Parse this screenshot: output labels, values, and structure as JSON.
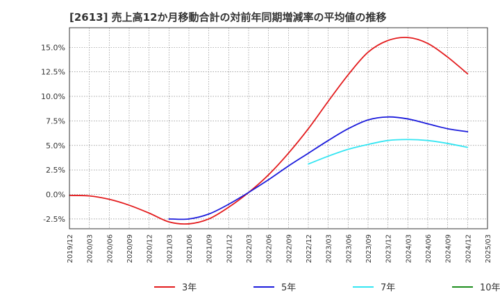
{
  "chart_data": {
    "type": "line",
    "title": "[2613]  売上高12か月移動合計の対前年同期増減率の平均値の推移",
    "xlabel": "",
    "ylabel": "",
    "x_ticks": [
      "2019/12",
      "2020/03",
      "2020/06",
      "2020/09",
      "2020/12",
      "2021/03",
      "2021/06",
      "2021/09",
      "2021/12",
      "2022/03",
      "2022/06",
      "2022/09",
      "2022/12",
      "2023/03",
      "2023/06",
      "2023/09",
      "2023/12",
      "2024/03",
      "2024/06",
      "2024/09",
      "2024/12",
      "2025/03"
    ],
    "y_ticks": [
      "15.0%",
      "12.5%",
      "10.0%",
      "7.5%",
      "5.0%",
      "2.5%",
      "0.0%",
      "-2.5%"
    ],
    "ylim": [
      -3.5,
      17.0
    ],
    "grid": true,
    "legend_position": "bottom",
    "series": [
      {
        "name": "3年",
        "color": "#e31a1c",
        "x": [
          "2019/12",
          "2020/03",
          "2020/06",
          "2020/09",
          "2020/12",
          "2021/03",
          "2021/06",
          "2021/09",
          "2021/12",
          "2022/03",
          "2022/06",
          "2022/09",
          "2022/12",
          "2023/03",
          "2023/06",
          "2023/09",
          "2023/12",
          "2024/03",
          "2024/06",
          "2024/09",
          "2024/12"
        ],
        "values": [
          -0.1,
          -0.15,
          -0.5,
          -1.1,
          -1.9,
          -2.8,
          -3.0,
          -2.5,
          -1.3,
          0.2,
          2.0,
          4.2,
          6.7,
          9.5,
          12.2,
          14.5,
          15.7,
          16.0,
          15.4,
          14.0,
          12.3
        ]
      },
      {
        "name": "5年",
        "color": "#1a1adc",
        "x": [
          "2021/03",
          "2021/06",
          "2021/09",
          "2021/12",
          "2022/03",
          "2022/06",
          "2022/09",
          "2022/12",
          "2023/03",
          "2023/06",
          "2023/09",
          "2023/12",
          "2024/03",
          "2024/06",
          "2024/09",
          "2024/12"
        ],
        "values": [
          -2.5,
          -2.5,
          -2.0,
          -1.0,
          0.2,
          1.5,
          2.9,
          4.2,
          5.5,
          6.7,
          7.6,
          7.9,
          7.7,
          7.2,
          6.7,
          6.4
        ]
      },
      {
        "name": "7年",
        "color": "#33e5f2",
        "x": [
          "2022/12",
          "2023/03",
          "2023/06",
          "2023/09",
          "2023/12",
          "2024/03",
          "2024/06",
          "2024/09",
          "2024/12"
        ],
        "values": [
          3.1,
          3.9,
          4.6,
          5.1,
          5.5,
          5.6,
          5.5,
          5.2,
          4.8
        ]
      },
      {
        "name": "10年",
        "color": "#1a8c1a",
        "x": [],
        "values": []
      }
    ]
  }
}
